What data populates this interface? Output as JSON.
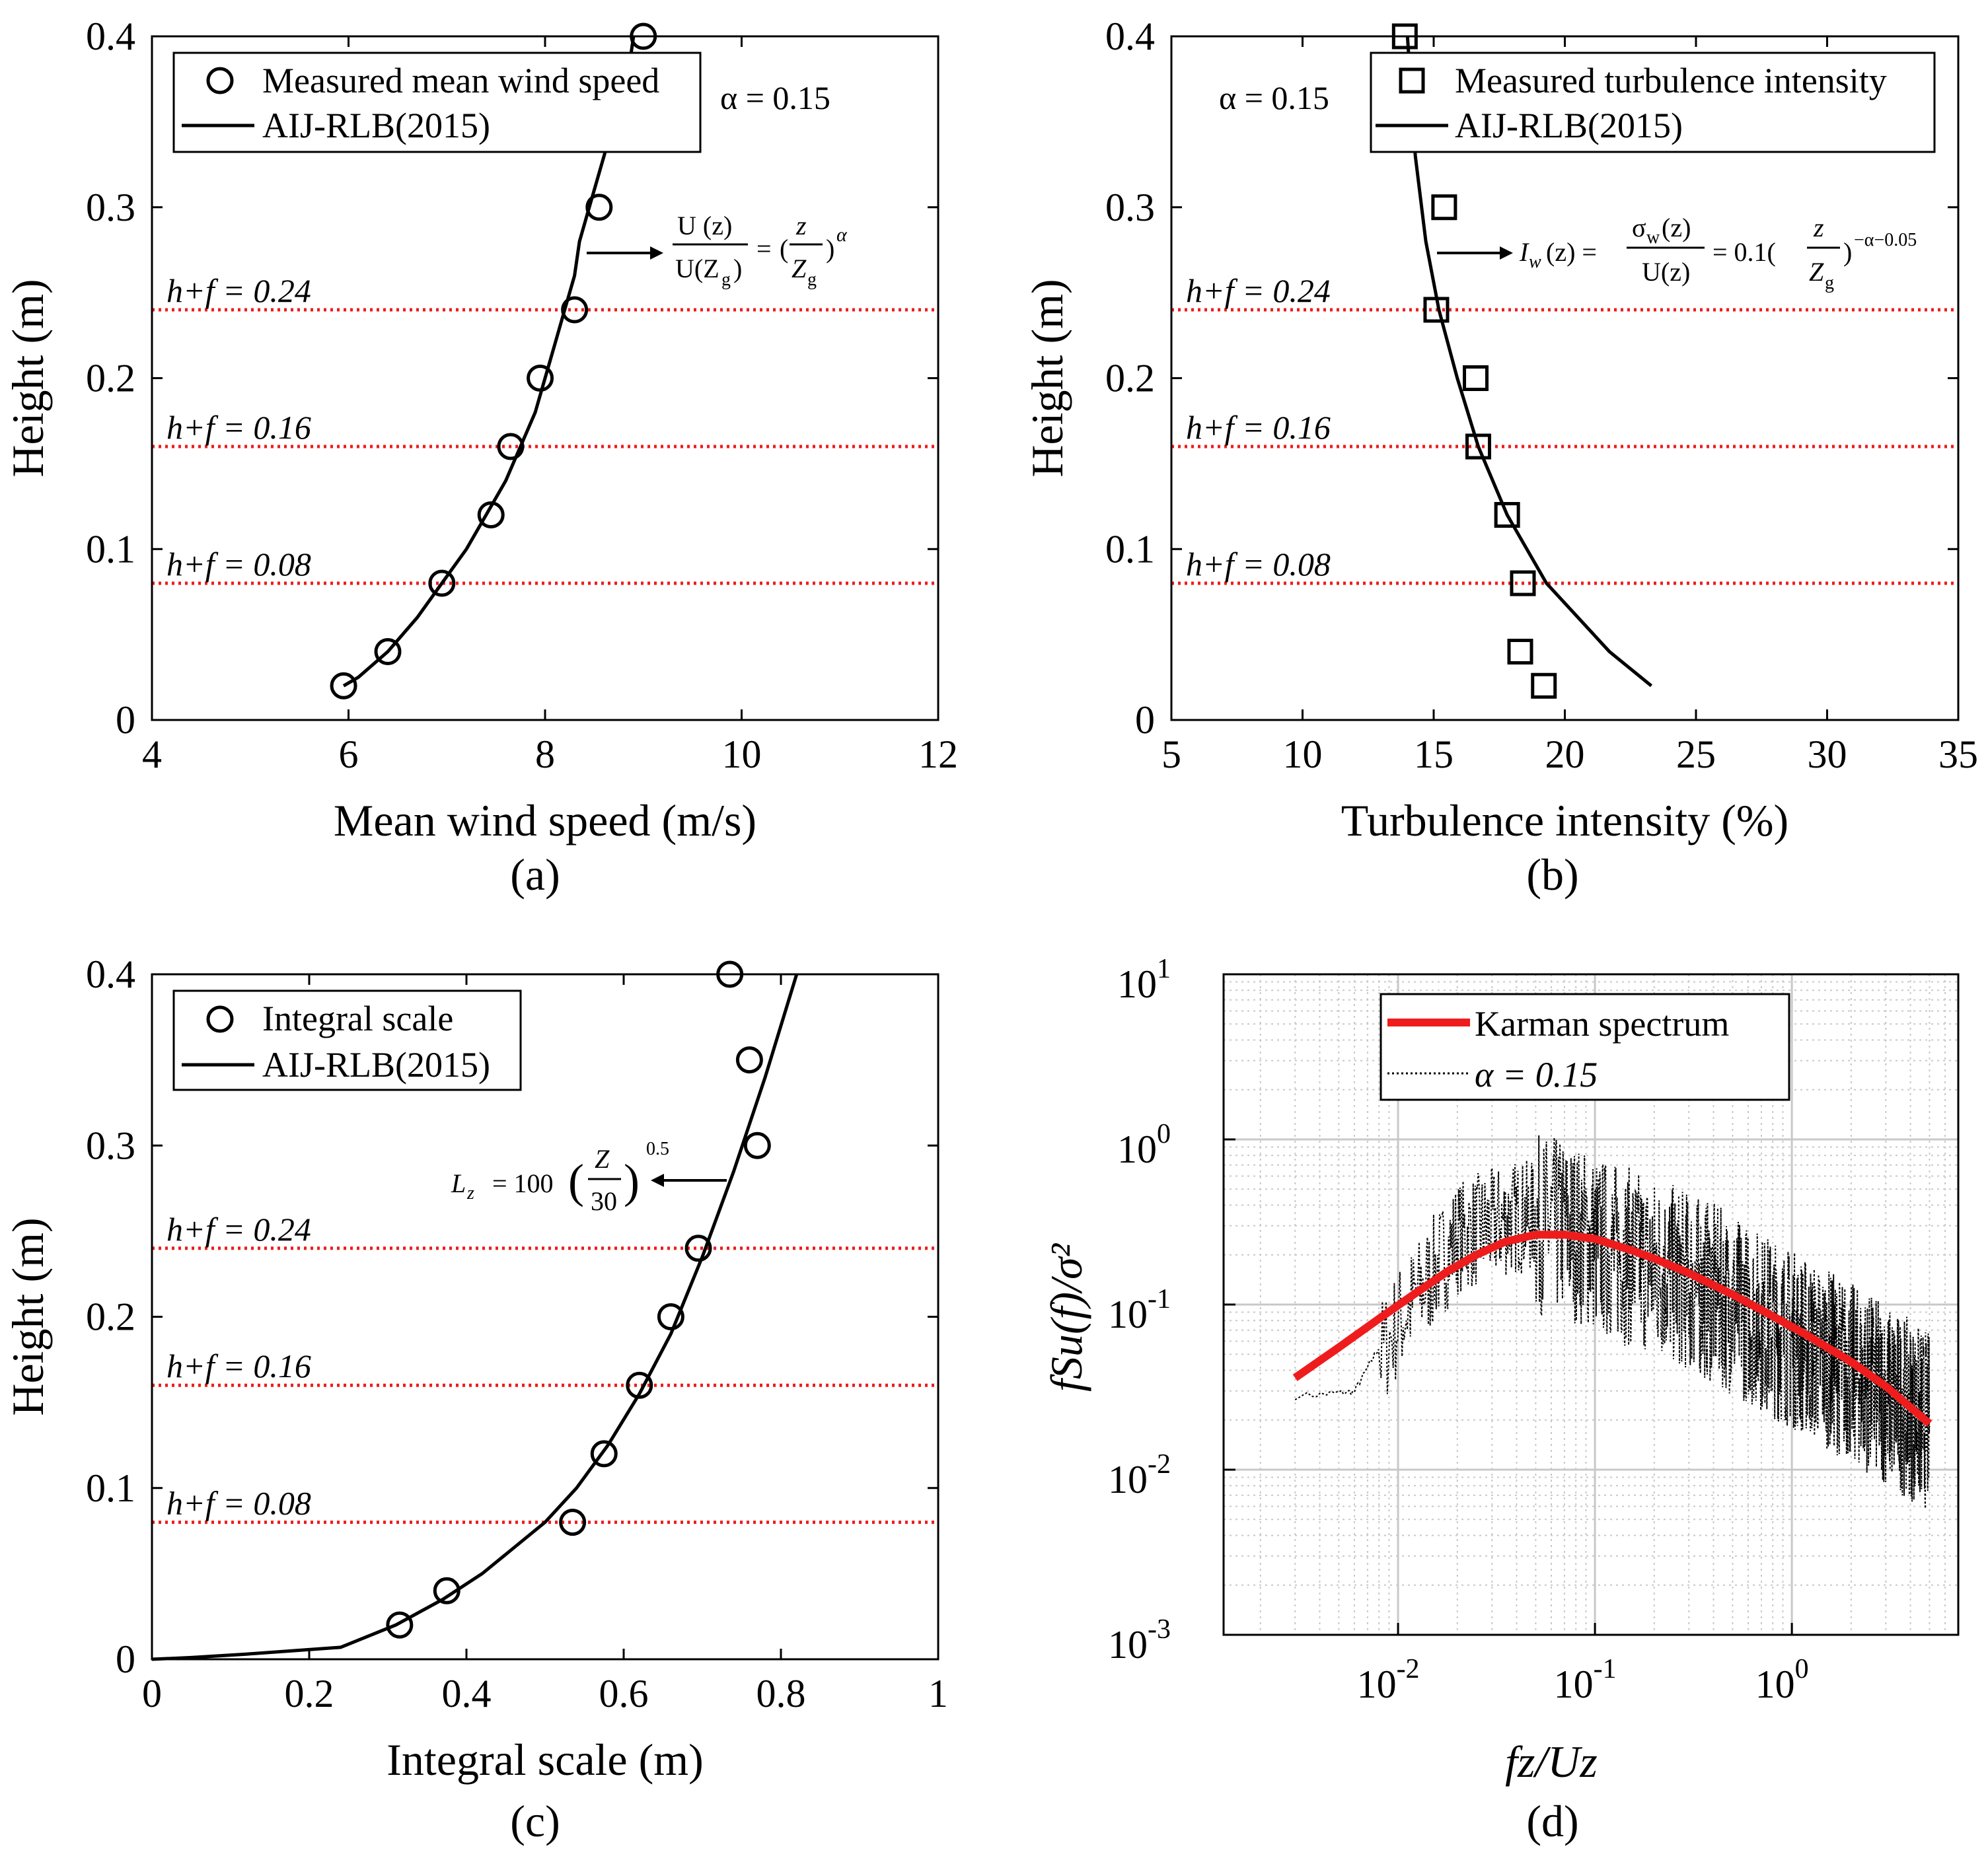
{
  "colors": {
    "axis": "#000000",
    "model": "#000000",
    "reference_line": "#ee1c1c",
    "karman": "#ee1c1c",
    "measured_spectrum": "#000000",
    "grid": "#c8c8c8"
  },
  "chart_data": [
    {
      "id": "a",
      "panel_label": "(a)",
      "type": "scatter",
      "xlabel": "Mean wind speed (m/s)",
      "ylabel": "Height (m)",
      "xlim": [
        4,
        12
      ],
      "ylim": [
        0,
        0.4
      ],
      "xticks": [
        4,
        6,
        8,
        10,
        12
      ],
      "yticks": [
        0,
        0.1,
        0.2,
        0.3,
        0.4
      ],
      "xtick_labels": [
        "4",
        "6",
        "8",
        "10",
        "12"
      ],
      "ytick_labels": [
        "0",
        "0.1",
        "0.2",
        "0.3",
        "0.4"
      ],
      "alpha_text": "α = 0.15",
      "legend": {
        "placement": "top-left",
        "entries": [
          "Measured mean wind speed",
          "AIJ-RLB(2015)"
        ]
      },
      "measured": {
        "name": "Measured mean wind speed",
        "marker": "circle",
        "x": [
          5.95,
          6.4,
          6.95,
          7.45,
          7.65,
          7.95,
          8.3,
          8.55,
          9.0
        ],
        "y": [
          0.02,
          0.04,
          0.08,
          0.12,
          0.16,
          0.2,
          0.24,
          0.3,
          0.4
        ]
      },
      "model": {
        "name": "AIJ-RLB(2015)",
        "x": [
          5.95,
          6.1,
          6.4,
          6.7,
          6.95,
          7.2,
          7.4,
          7.6,
          7.75,
          7.9,
          8.0,
          8.1,
          8.2,
          8.3,
          8.35,
          8.45,
          8.55,
          8.65,
          8.75,
          8.85,
          8.9
        ],
        "y": [
          0.02,
          0.025,
          0.04,
          0.06,
          0.08,
          0.1,
          0.12,
          0.14,
          0.16,
          0.18,
          0.2,
          0.22,
          0.24,
          0.26,
          0.28,
          0.3,
          0.32,
          0.34,
          0.36,
          0.38,
          0.4
        ]
      },
      "reference_lines": [
        {
          "y": 0.08,
          "label": "h+f = 0.08"
        },
        {
          "y": 0.16,
          "label": "h+f = 0.16"
        },
        {
          "y": 0.24,
          "label": "h+f = 0.24"
        }
      ],
      "annotation": {
        "text": "U(z)/U(Zg) = (z/Zg)^α",
        "arrow_at": [
          8.45,
          0.273
        ]
      }
    },
    {
      "id": "b",
      "panel_label": "(b)",
      "type": "scatter",
      "xlabel": "Turbulence intensity (%)",
      "ylabel": "Height (m)",
      "xlim": [
        5,
        35
      ],
      "ylim": [
        0,
        0.4
      ],
      "xticks": [
        5,
        10,
        15,
        20,
        25,
        30,
        35
      ],
      "yticks": [
        0,
        0.1,
        0.2,
        0.3,
        0.4
      ],
      "xtick_labels": [
        "5",
        "10",
        "15",
        "20",
        "25",
        "30",
        "35"
      ],
      "ytick_labels": [
        "0",
        "0.1",
        "0.2",
        "0.3",
        "0.4"
      ],
      "alpha_text": "α = 0.15",
      "legend": {
        "placement": "top-right",
        "entries": [
          "Measured turbulence intensity",
          "AIJ-RLB(2015)"
        ]
      },
      "measured": {
        "name": "Measured turbulence intensity",
        "marker": "square",
        "x": [
          19.2,
          18.3,
          18.4,
          17.8,
          16.7,
          16.6,
          15.1,
          15.4,
          13.9
        ],
        "y": [
          0.02,
          0.04,
          0.08,
          0.12,
          0.16,
          0.2,
          0.24,
          0.3,
          0.4
        ]
      },
      "model": {
        "name": "AIJ-RLB(2015)",
        "x": [
          23.3,
          21.7,
          19.3,
          17.8,
          16.7,
          15.9,
          15.2,
          14.7,
          14.3,
          14.0
        ],
        "y": [
          0.02,
          0.04,
          0.08,
          0.12,
          0.16,
          0.2,
          0.24,
          0.28,
          0.33,
          0.4
        ]
      },
      "reference_lines": [
        {
          "y": 0.08,
          "label": "h+f = 0.08"
        },
        {
          "y": 0.16,
          "label": "h+f = 0.16"
        },
        {
          "y": 0.24,
          "label": "h+f = 0.24"
        }
      ],
      "annotation": {
        "text": "Iw(z) = σw(z)/U(z) = 0.1(z/Zg)^(−α−0.05)",
        "arrow_at": [
          15.2,
          0.273
        ]
      }
    },
    {
      "id": "c",
      "panel_label": "(c)",
      "type": "scatter",
      "xlabel": "Integral scale (m)",
      "ylabel": "Height (m)",
      "xlim": [
        0,
        1
      ],
      "ylim": [
        0,
        0.4
      ],
      "xticks": [
        0,
        0.2,
        0.4,
        0.6,
        0.8,
        1
      ],
      "yticks": [
        0,
        0.1,
        0.2,
        0.3,
        0.4
      ],
      "xtick_labels": [
        "0",
        "0.2",
        "0.4",
        "0.6",
        "0.8",
        "1"
      ],
      "ytick_labels": [
        "0",
        "0.1",
        "0.2",
        "0.3",
        "0.4"
      ],
      "legend": {
        "placement": "top-left",
        "entries": [
          "Integral scale",
          "AIJ-RLB(2015)"
        ]
      },
      "measured": {
        "name": "Integral scale",
        "marker": "circle",
        "x": [
          0.315,
          0.375,
          0.535,
          0.575,
          0.62,
          0.66,
          0.695,
          0.77,
          0.76,
          0.735
        ],
        "y": [
          0.02,
          0.04,
          0.08,
          0.12,
          0.16,
          0.2,
          0.24,
          0.3,
          0.35,
          0.4
        ]
      },
      "model": {
        "name": "AIJ-RLB(2015)",
        "x": [
          0.0,
          0.05,
          0.12,
          0.24,
          0.31,
          0.37,
          0.42,
          0.46,
          0.5,
          0.54,
          0.58,
          0.62,
          0.66,
          0.7,
          0.74,
          0.78,
          0.82
        ],
        "y": [
          0.0,
          0.001,
          0.003,
          0.007,
          0.02,
          0.035,
          0.05,
          0.065,
          0.08,
          0.1,
          0.125,
          0.155,
          0.19,
          0.235,
          0.285,
          0.34,
          0.4
        ]
      },
      "reference_lines": [
        {
          "y": 0.08,
          "label": "h+f = 0.08"
        },
        {
          "y": 0.16,
          "label": "h+f = 0.16"
        },
        {
          "y": 0.24,
          "label": "h+f = 0.24"
        }
      ],
      "annotation": {
        "text": "Lz = 100(Z/30)^0.5",
        "arrow_from": [
          0.735,
          0.28
        ]
      }
    },
    {
      "id": "d",
      "panel_label": "(d)",
      "type": "line",
      "xlabel": "fz/Uz",
      "ylabel": "fSu(f)/σ²",
      "xscale": "log",
      "yscale": "log",
      "xlim": [
        0.0013,
        7
      ],
      "ylim": [
        0.001,
        10
      ],
      "grid": true,
      "xticks": [
        0.01,
        0.1,
        1
      ],
      "yticks": [
        0.001,
        0.01,
        0.1,
        1,
        10
      ],
      "xtick_labels": [
        [
          "10",
          "-2"
        ],
        [
          "10",
          "-1"
        ],
        [
          "10",
          "0"
        ]
      ],
      "ytick_labels": [
        [
          "10",
          "-3"
        ],
        [
          "10",
          "-2"
        ],
        [
          "10",
          "-1"
        ],
        [
          "10",
          "0"
        ],
        [
          "10",
          "1"
        ]
      ],
      "legend": {
        "placement": "top-center",
        "entries": [
          "Karman spectrum",
          "α = 0.15"
        ]
      },
      "series": [
        {
          "name": "Karman spectrum",
          "style": "solid-thick",
          "x": [
            0.003,
            0.005,
            0.008,
            0.012,
            0.018,
            0.025,
            0.035,
            0.05,
            0.07,
            0.1,
            0.15,
            0.2,
            0.3,
            0.5,
            0.8,
            1.2,
            2,
            3,
            5
          ],
          "y": [
            0.036,
            0.055,
            0.082,
            0.115,
            0.16,
            0.2,
            0.24,
            0.265,
            0.265,
            0.25,
            0.215,
            0.19,
            0.155,
            0.115,
            0.085,
            0.065,
            0.045,
            0.032,
            0.019
          ]
        },
        {
          "name": "α = 0.15",
          "style": "dotted",
          "x_range": [
            0.003,
            5
          ],
          "y_envelope": {
            "x": [
              0.003,
              0.006,
              0.01,
              0.02,
              0.04,
              0.07,
              0.1,
              0.2,
              0.4,
              1,
              2,
              5
            ],
            "y": [
              0.028,
              0.03,
              0.09,
              0.3,
              0.4,
              0.38,
              0.3,
              0.22,
              0.15,
              0.08,
              0.05,
              0.025
            ]
          }
        }
      ]
    }
  ],
  "annotations": {
    "a": {
      "num_top": "U (z)",
      "den": "U(Z",
      "den_sub": "g",
      "den_end": ")",
      "eq": "=",
      "paren_open": "(",
      "frac_num": "z",
      "frac_den": "Z",
      "frac_den_sub": "g",
      "paren_close": ")",
      "exp": "α"
    },
    "b": {
      "lhs": "I",
      "lhs_sub": "w",
      "lhs_end": "(z) =",
      "num": "σ",
      "num_sub": "w",
      "num_end": "(z)",
      "den": "U(z)",
      "mid": "= 0.1(",
      "frac_num": "z",
      "frac_den": "Z",
      "frac_den_sub": "g",
      "close": ")",
      "exp": "−α−0.05"
    },
    "c": {
      "lhs": "L",
      "lhs_sub": "z",
      "mid": "= 100",
      "frac_num": "Z",
      "frac_den": "30",
      "exp": "0.5"
    }
  }
}
